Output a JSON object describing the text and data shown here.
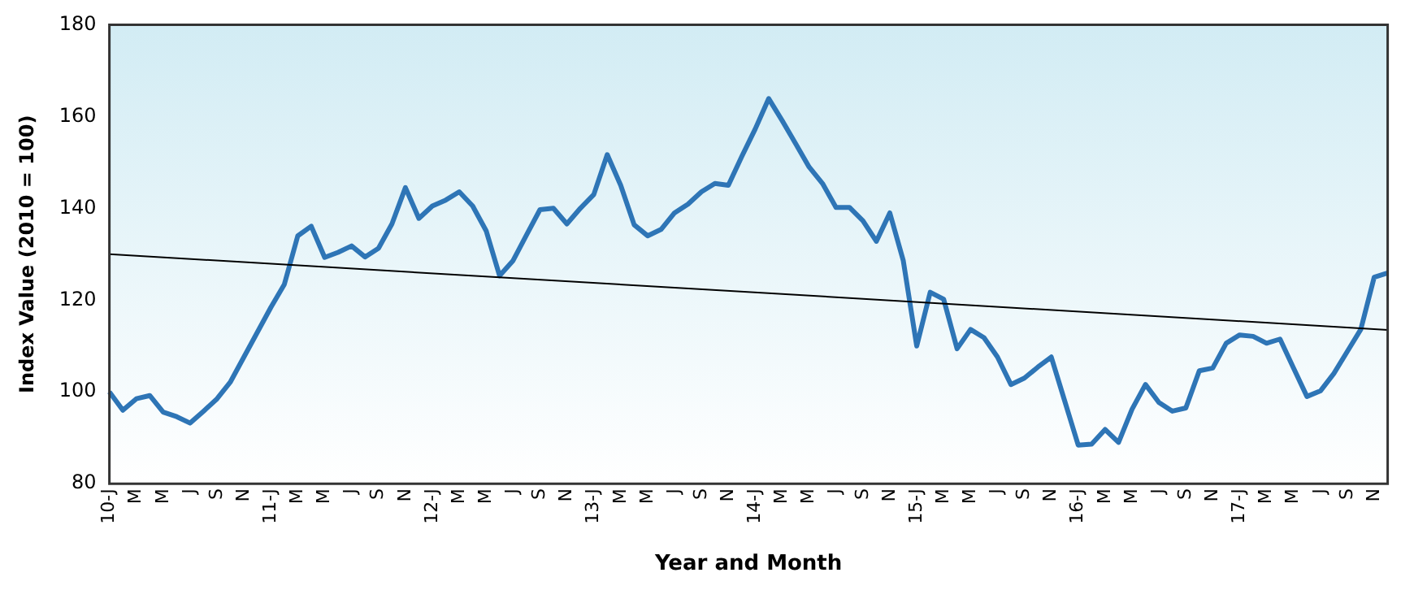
{
  "chart_data": {
    "type": "line",
    "xlabel": "Year and Month",
    "ylabel": "Index Value (2010 = 100)",
    "categories": [
      "10-J",
      null,
      "M",
      null,
      "M",
      null,
      "J",
      null,
      "S",
      null,
      "N",
      null,
      "11-J",
      null,
      "M",
      null,
      "M",
      null,
      "J",
      null,
      "S",
      null,
      "N",
      null,
      "12-J",
      null,
      "M",
      null,
      "M",
      null,
      "J",
      null,
      "S",
      null,
      "N",
      null,
      "13-J",
      null,
      "M",
      null,
      "M",
      null,
      "J",
      null,
      "S",
      null,
      "N",
      null,
      "14-J",
      null,
      "M",
      null,
      "M",
      null,
      "J",
      null,
      "S",
      null,
      "N",
      null,
      "15-J",
      null,
      "M",
      null,
      "M",
      null,
      "J",
      null,
      "S",
      null,
      "N",
      null,
      "16-J",
      null,
      "M",
      null,
      "M",
      null,
      "J",
      null,
      "S",
      null,
      "N",
      null,
      "17-J",
      null,
      "M",
      null,
      "M",
      null,
      "J",
      null,
      "S",
      null,
      "N",
      null
    ],
    "series": [
      {
        "color": "#2e75b6",
        "values": [
          100,
          96,
          98.5,
          99.2,
          95.6,
          94.6,
          93.2,
          95.8,
          98.5,
          102.2,
          107.6,
          113,
          118.4,
          123.4,
          134,
          136.1,
          129.3,
          130.4,
          131.8,
          129.4,
          131.3,
          136.6,
          144.5,
          137.8,
          140.5,
          141.8,
          143.6,
          140.5,
          135.1,
          125.3,
          128.6,
          134.2,
          139.7,
          140,
          136.6,
          140,
          143,
          151.7,
          145,
          136.4,
          134,
          135.4,
          139,
          140.9,
          143.6,
          145.4,
          145,
          151.3,
          157.3,
          163.9,
          159.1,
          154.1,
          149,
          145.4,
          140.2,
          140.2,
          137.3,
          132.8,
          139,
          128.6,
          110,
          121.7,
          120.2,
          109.4,
          113.6,
          111.8,
          107.6,
          101.6,
          103,
          105.4,
          107.6,
          98,
          88.4,
          88.6,
          91.8,
          89,
          96.2,
          101.6,
          97.7,
          95.8,
          96.5,
          104.6,
          105.2,
          110.6,
          112.4,
          112.1,
          110.6,
          111.5,
          105.2,
          99,
          100.2,
          104,
          108.8,
          113.6,
          125,
          125.9
        ]
      },
      {
        "type": "line",
        "color": "#000000",
        "values": [
          130,
          null,
          null,
          null,
          null,
          null,
          null,
          null,
          null,
          null,
          null,
          null,
          null,
          null,
          null,
          null,
          null,
          null,
          null,
          null,
          null,
          null,
          null,
          null,
          null,
          null,
          null,
          null,
          null,
          null,
          null,
          null,
          null,
          null,
          null,
          null,
          null,
          null,
          null,
          null,
          null,
          null,
          null,
          null,
          null,
          null,
          null,
          null,
          null,
          null,
          null,
          null,
          null,
          null,
          null,
          null,
          null,
          null,
          null,
          null,
          null,
          null,
          null,
          null,
          null,
          null,
          null,
          null,
          null,
          null,
          null,
          null,
          null,
          null,
          null,
          null,
          null,
          null,
          null,
          null,
          null,
          null,
          null,
          null,
          null,
          null,
          null,
          null,
          null,
          null,
          null,
          null,
          null,
          null,
          null,
          113.5
        ]
      }
    ],
    "ylim": [
      80,
      180
    ],
    "yticks": [
      80,
      100,
      120,
      140,
      160,
      180
    ],
    "grid": false,
    "legend": false,
    "marker": "none",
    "line_style": "solid"
  }
}
